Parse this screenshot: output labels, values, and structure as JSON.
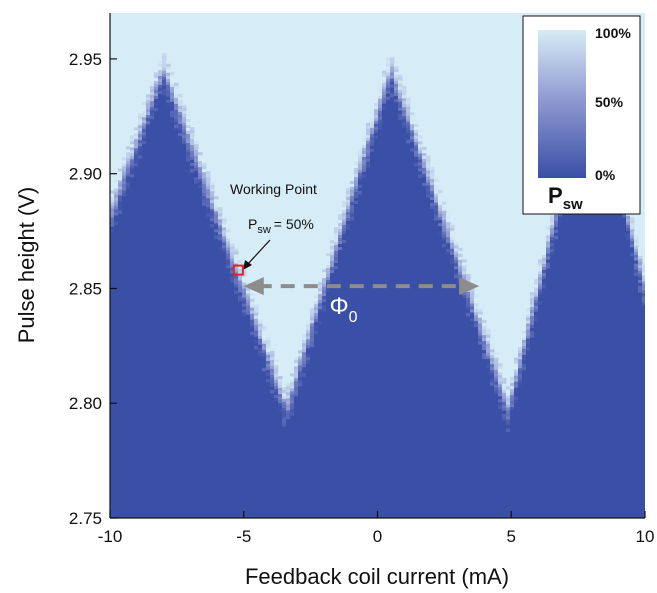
{
  "chart_data": {
    "type": "heatmap",
    "xlabel": "Feedback coil current (mA)",
    "ylabel": "Pulse height (V)",
    "xlim": [
      -10,
      10
    ],
    "ylim": [
      2.75,
      2.97
    ],
    "x_ticks": [
      -10,
      -5,
      0,
      5,
      10
    ],
    "y_ticks": [
      2.75,
      2.8,
      2.85,
      2.9,
      2.95
    ],
    "x_tick_labels": [
      "-10",
      "-5",
      "0",
      "5",
      "10"
    ],
    "y_tick_labels": [
      "2.75",
      "2.80",
      "2.85",
      "2.90",
      "2.95"
    ],
    "z_label_main": "P",
    "z_label_sub": "sw",
    "colorbar_ticks": [
      "100%",
      "50%",
      "0%"
    ],
    "colors": {
      "low": "#3a4fa6",
      "mid": "#8a95cf",
      "high": "#d6ecf6"
    },
    "threshold_pattern": {
      "description_values": "switching boundary is a triangle wave in pulse height vs current",
      "peaks_x": [
        -8.0,
        0.5,
        8.0
      ],
      "peak_y": 2.945,
      "valleys_x": [
        -3.4,
        4.9
      ],
      "valley_y": 2.797,
      "transition_width_v": 0.008
    },
    "working_point": {
      "x": -5.2,
      "y": 2.858
    },
    "annotation": {
      "title": "Working Point",
      "psw_main": "P",
      "psw_sub": "sw",
      "psw_value": "= 50%"
    },
    "period_arrow": {
      "x_start": -5.0,
      "x_end": 3.8,
      "y": 2.851,
      "label_main": "Φ",
      "label_sub": "0"
    }
  }
}
